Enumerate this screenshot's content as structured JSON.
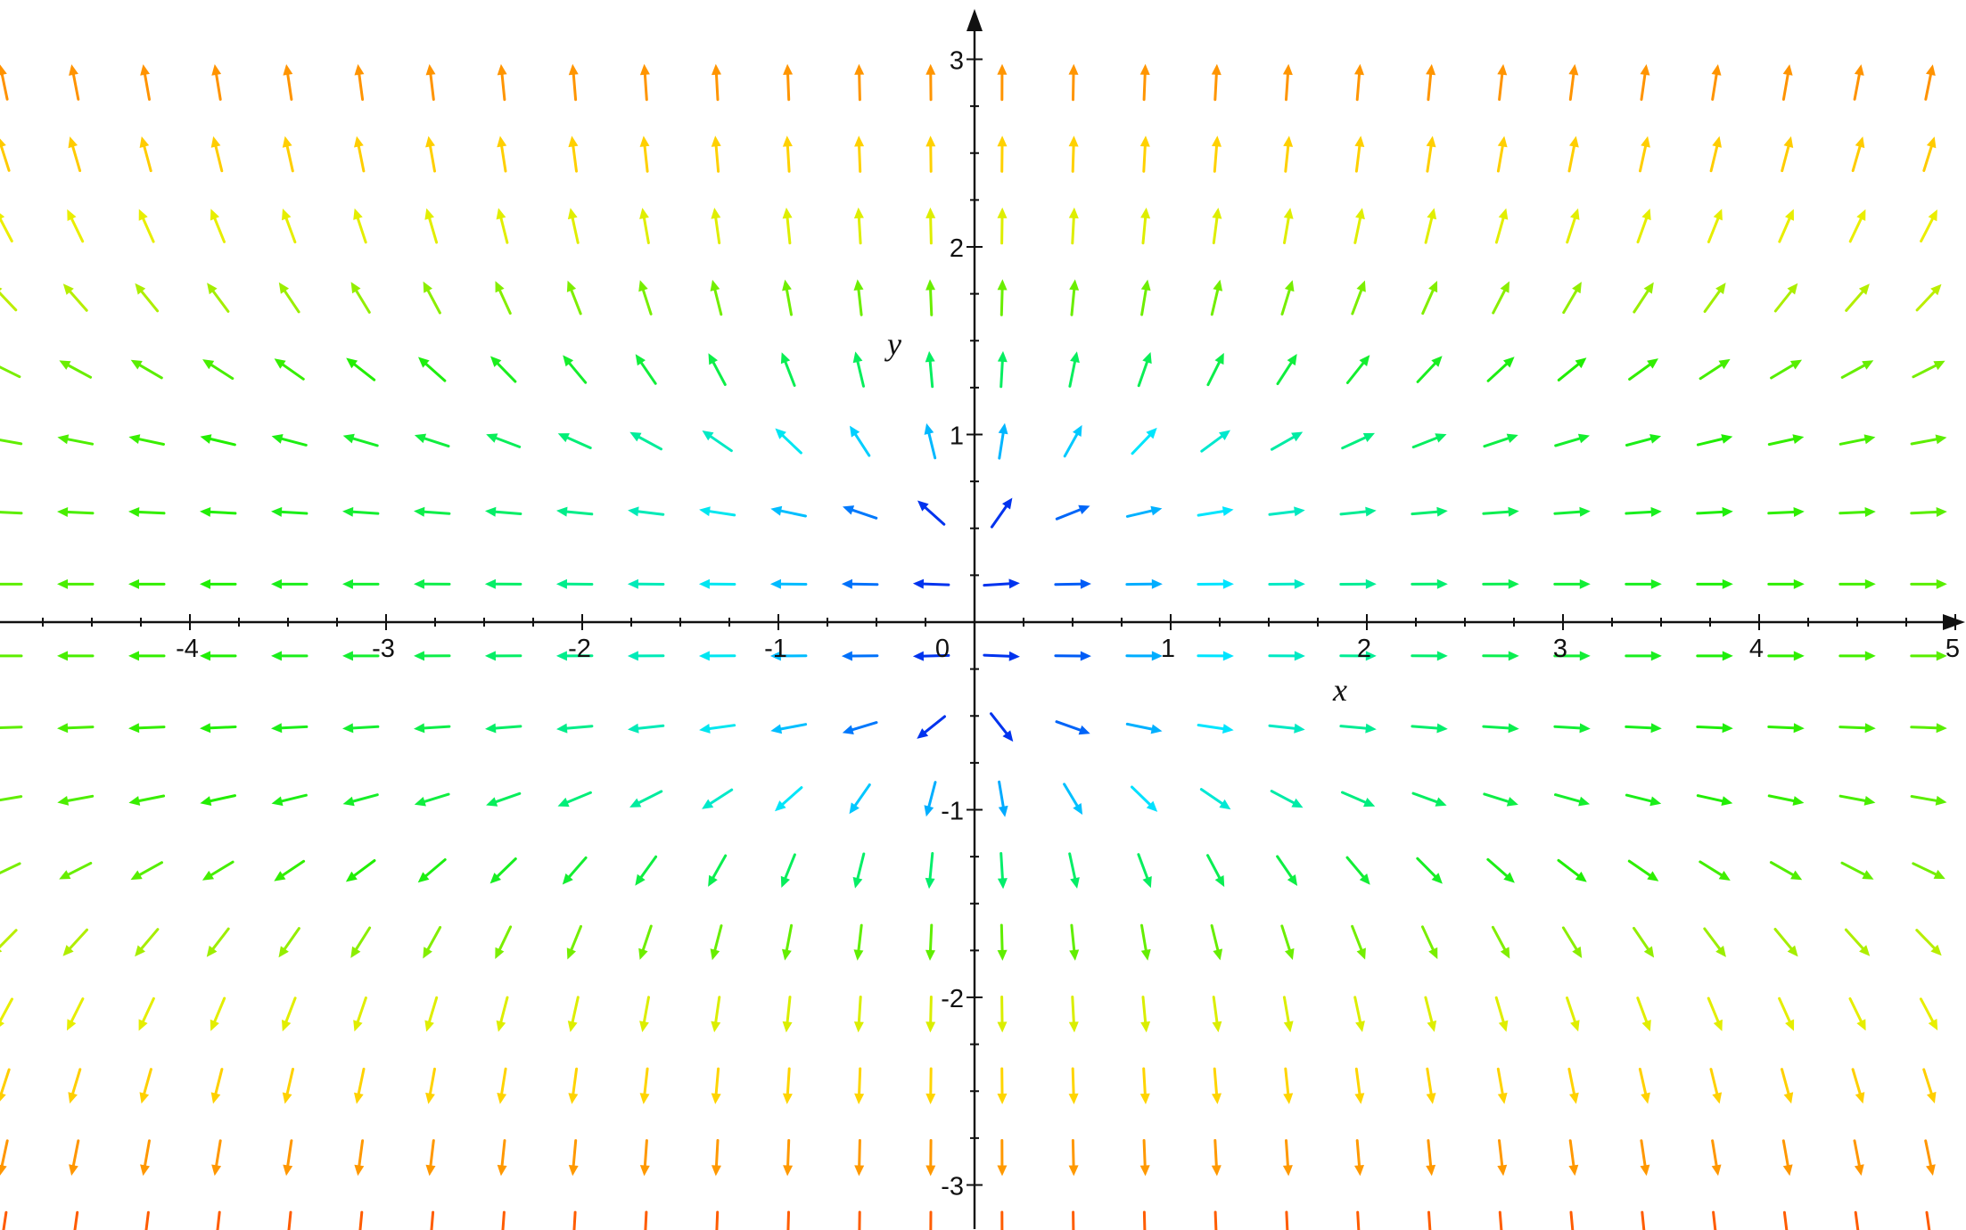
{
  "chart_data": {
    "type": "vector_field",
    "xlabel": "x",
    "ylabel": "y",
    "xlim": [
      -4.95,
      5.05
    ],
    "ylim": [
      -3.2,
      3.0
    ],
    "x_ticks": [
      {
        "value": -4,
        "label": "-4"
      },
      {
        "value": -3,
        "label": "-3"
      },
      {
        "value": -2,
        "label": "-2"
      },
      {
        "value": -1,
        "label": "-1"
      },
      {
        "value": 0,
        "label": "0"
      },
      {
        "value": 1,
        "label": "1"
      },
      {
        "value": 2,
        "label": "2"
      },
      {
        "value": 3,
        "label": "3"
      },
      {
        "value": 4,
        "label": "4"
      },
      {
        "value": 5,
        "label": "5"
      }
    ],
    "y_ticks": [
      {
        "value": -3,
        "label": "-3"
      },
      {
        "value": -2,
        "label": "-2"
      },
      {
        "value": -1,
        "label": "-1"
      },
      {
        "value": 1,
        "label": "1"
      },
      {
        "value": 2,
        "label": "2"
      },
      {
        "value": 3,
        "label": "3"
      }
    ],
    "minor_tick_step": 0.25,
    "field": {
      "u": "x",
      "v": "y^3"
    },
    "grid": {
      "x_start": -4.95,
      "x_step": 0.3636,
      "x_count": 28,
      "y_start": 2.88,
      "y_step": -0.3825,
      "y_count": 17
    },
    "color_scale": [
      "#0033ee",
      "#0088ff",
      "#00e5ff",
      "#00ee77",
      "#22ee00",
      "#bbee00",
      "#ffee00",
      "#ffa000",
      "#ff4400"
    ],
    "grid_on": false
  }
}
